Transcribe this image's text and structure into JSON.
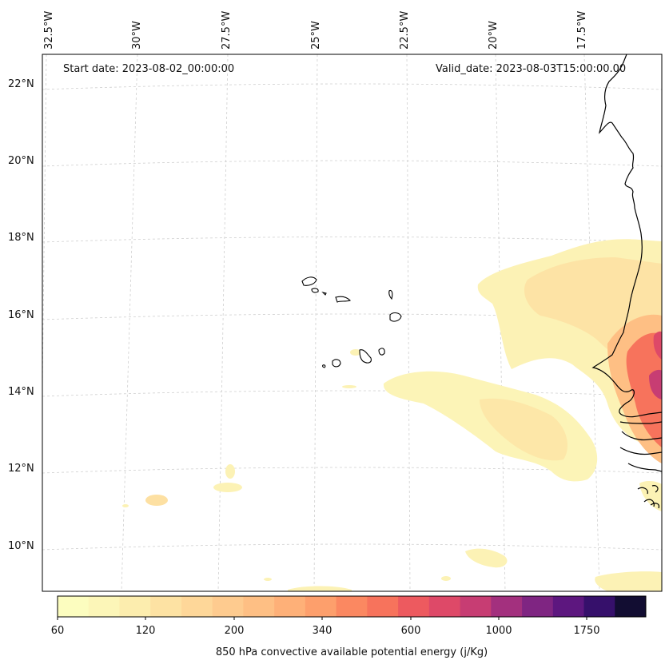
{
  "header": {
    "start_date": "Start date: 2023-08-02_00:00:00",
    "valid_date": "Valid_date: 2023-08-03T15:00:00.00"
  },
  "longitude_labels": [
    "32.5°W",
    "30°W",
    "27.5°W",
    "25°W",
    "22.5°W",
    "20°W",
    "17.5°W"
  ],
  "latitude_labels": [
    "22°N",
    "20°N",
    "18°N",
    "16°N",
    "14°N",
    "12°N",
    "10°N"
  ],
  "colorbar": {
    "label": "850 hPa convective available potential energy (j/Kg)",
    "tick_labels": [
      "60",
      "120",
      "200",
      "340",
      "600",
      "1000",
      "1750"
    ],
    "colors": [
      "#fcfdbf",
      "#fcf6b8",
      "#fcedae",
      "#fde2a3",
      "#fed799",
      "#fecb8f",
      "#febf84",
      "#feb078",
      "#fd9f6c",
      "#fb8861",
      "#f7735c",
      "#ed5a5f",
      "#de4968",
      "#c73d73",
      "#a3307e",
      "#7f2582",
      "#5d177f",
      "#36106b",
      "#120d32"
    ]
  },
  "map": {
    "region": "Cape Verde Islands and West African coast",
    "coastline_color": "#000000",
    "gridline_color": "#cfcfcf"
  }
}
